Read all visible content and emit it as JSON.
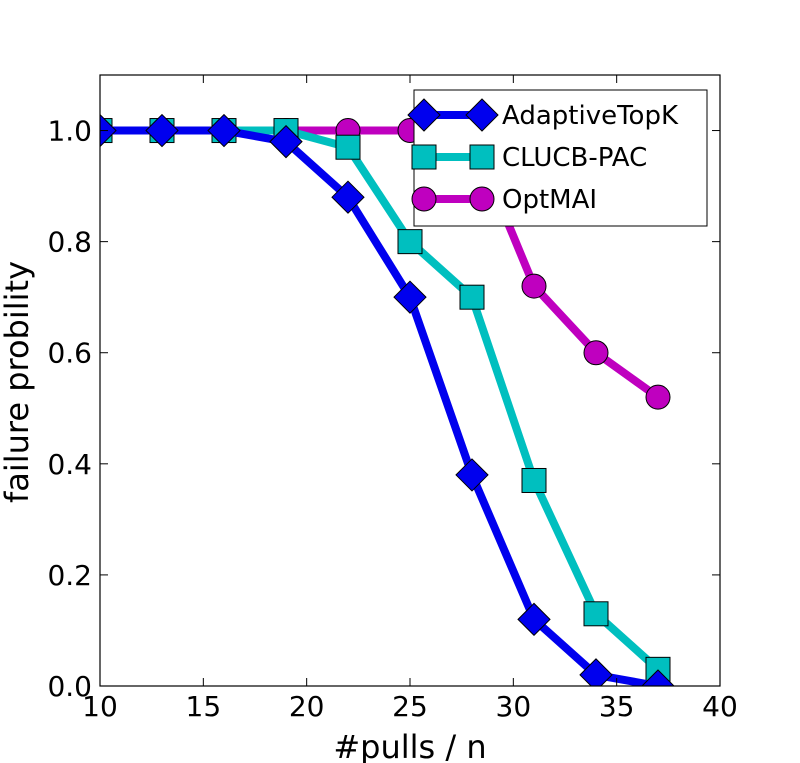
{
  "chart_data": {
    "type": "line",
    "xlabel": "#pulls / n",
    "ylabel": "failure probility",
    "xlim": [
      10,
      40
    ],
    "ylim": [
      0,
      1.1
    ],
    "xticks": [
      10,
      15,
      20,
      25,
      30,
      35,
      40
    ],
    "yticks": [
      0.0,
      0.2,
      0.4,
      0.6,
      0.8,
      1.0
    ],
    "xtick_labels": [
      "10",
      "15",
      "20",
      "25",
      "30",
      "35",
      "40"
    ],
    "ytick_labels": [
      "0.0",
      "0.2",
      "0.4",
      "0.6",
      "0.8",
      "1.0"
    ],
    "grid": false,
    "legend_position": "upper-right",
    "x": [
      10,
      13,
      16,
      19,
      22,
      25,
      28,
      31,
      34,
      37
    ],
    "series": [
      {
        "name": "AdaptiveTopK",
        "color": "#0000ee",
        "marker": "diamond",
        "values": [
          1.0,
          1.0,
          1.0,
          0.98,
          0.88,
          0.7,
          0.38,
          0.12,
          0.02,
          0.0
        ]
      },
      {
        "name": "CLUCB-PAC",
        "color": "#00bfbf",
        "marker": "square",
        "values": [
          1.0,
          1.0,
          1.0,
          1.0,
          0.97,
          0.8,
          0.7,
          0.37,
          0.13,
          0.03
        ]
      },
      {
        "name": "OptMAI",
        "color": "#bf00bf",
        "marker": "circle",
        "values": [
          1.0,
          1.0,
          1.0,
          1.0,
          1.0,
          1.0,
          0.99,
          0.72,
          0.6,
          0.52
        ]
      }
    ]
  }
}
